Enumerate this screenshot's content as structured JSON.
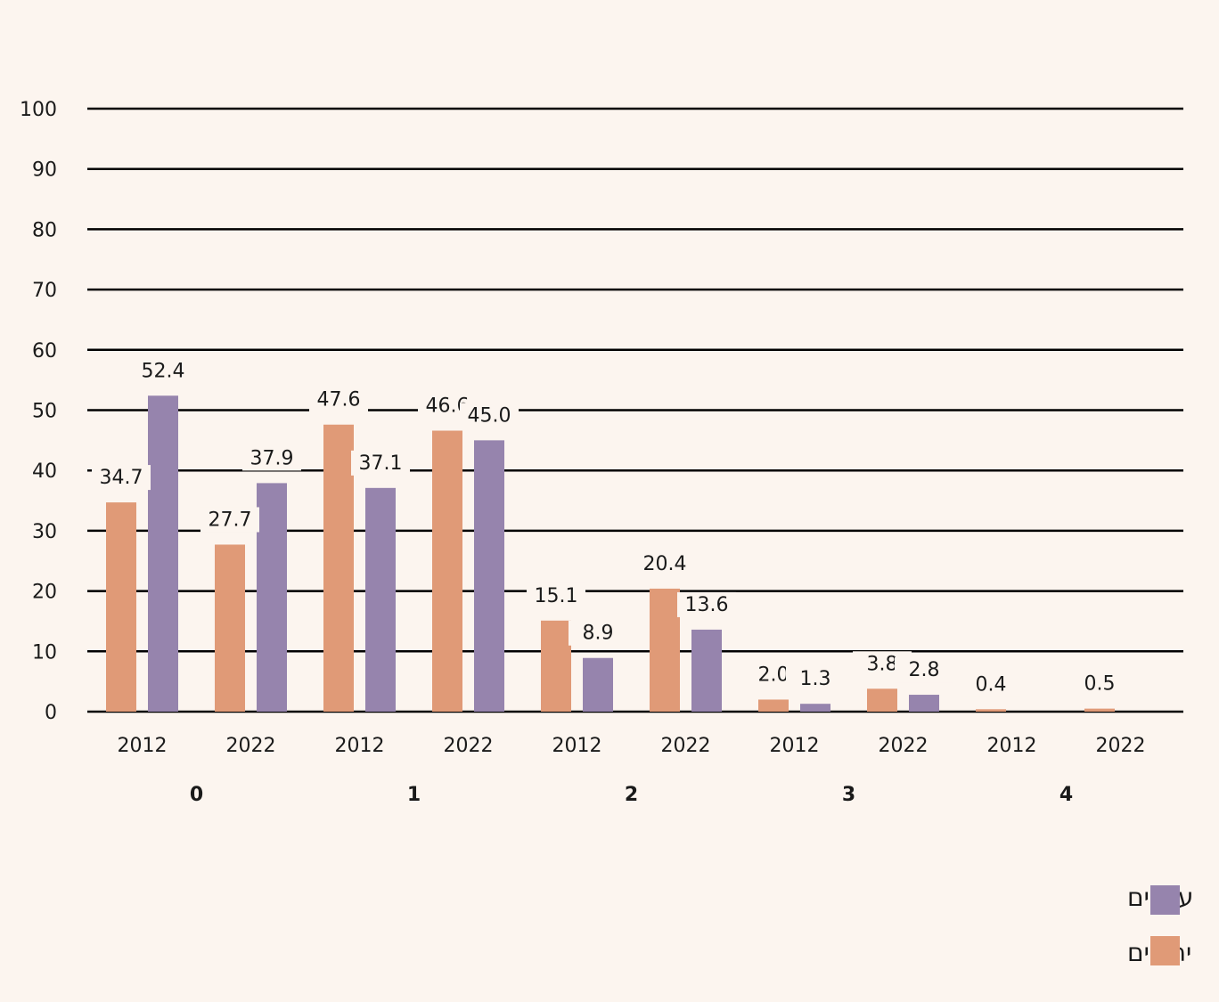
{
  "chart_data": {
    "type": "bar",
    "ylim": [
      0,
      100
    ],
    "yticks": [
      0,
      10,
      20,
      30,
      40,
      50,
      60,
      70,
      80,
      90,
      100
    ],
    "grid": true,
    "legend_position": "bottom-right",
    "groups": [
      {
        "label": "0",
        "bars": [
          {
            "year": "2012",
            "values": [
              34.7,
              52.4
            ],
            "labels": [
              "34.7",
              "52.4"
            ]
          },
          {
            "year": "2022",
            "values": [
              27.7,
              37.9
            ],
            "labels": [
              "27.7",
              "37.9"
            ]
          }
        ]
      },
      {
        "label": "1",
        "bars": [
          {
            "year": "2012",
            "values": [
              47.6,
              37.1
            ],
            "labels": [
              "47.6",
              "37.1"
            ]
          },
          {
            "year": "2022",
            "values": [
              46.6,
              45.0
            ],
            "labels": [
              "46.6",
              "45.0"
            ]
          }
        ]
      },
      {
        "label": "2",
        "bars": [
          {
            "year": "2012",
            "values": [
              15.1,
              8.9
            ],
            "labels": [
              "15.1",
              "8.9"
            ]
          },
          {
            "year": "2022",
            "values": [
              20.4,
              13.6
            ],
            "labels": [
              "20.4",
              "13.6"
            ]
          }
        ]
      },
      {
        "label": "3",
        "bars": [
          {
            "year": "2012",
            "values": [
              2.0,
              1.3
            ],
            "labels": [
              "2.0",
              "1.3"
            ]
          },
          {
            "year": "2022",
            "values": [
              3.8,
              2.8
            ],
            "labels": [
              "3.8",
              "2.8"
            ]
          }
        ]
      },
      {
        "label": "4",
        "bars": [
          {
            "year": "2012",
            "values": [
              0.4,
              null
            ],
            "labels": [
              "0.4",
              ""
            ]
          },
          {
            "year": "2022",
            "values": [
              0.5,
              null
            ],
            "labels": [
              "0.5",
              ""
            ]
          }
        ]
      }
    ],
    "series": [
      {
        "name": "יהודים",
        "color": "#e09a77"
      },
      {
        "name": "ערבים",
        "color": "#9684ad"
      }
    ]
  },
  "legend": {
    "items": [
      {
        "label": "ערבים",
        "color": "#9684ad"
      },
      {
        "label": "יהודים",
        "color": "#e09a77"
      }
    ]
  }
}
